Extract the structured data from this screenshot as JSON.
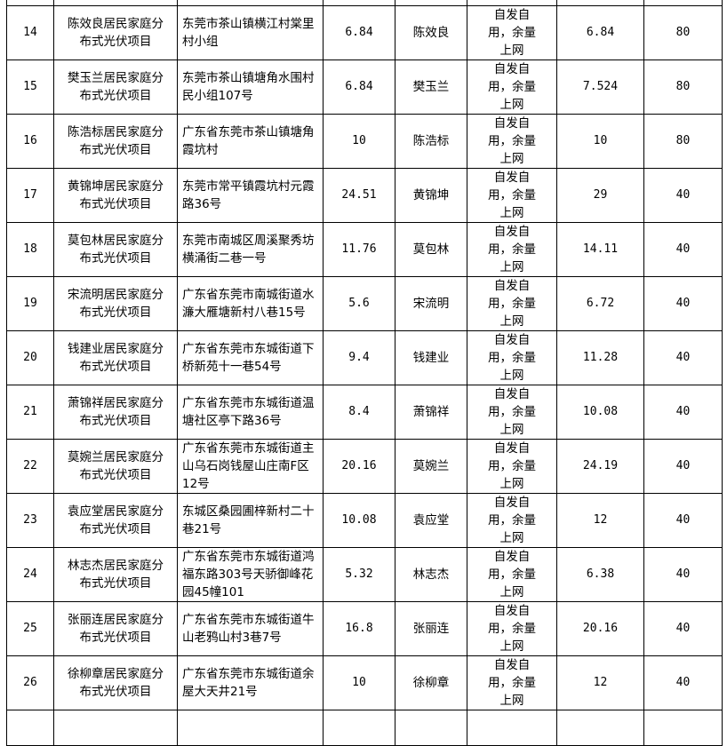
{
  "table": {
    "rows": [
      {
        "no": "14",
        "project": "陈效良居民家庭分布式光伏项目",
        "address": "东莞市茶山镇横江村棠里村小组",
        "capacity": "6.84",
        "owner": "陈效良",
        "mode": "自发自用，余量上网",
        "value2": "6.84",
        "value3": "80"
      },
      {
        "no": "15",
        "project": "樊玉兰居民家庭分布式光伏项目",
        "address": "东莞市茶山镇塘角水围村民小组107号",
        "capacity": "6.84",
        "owner": "樊玉兰",
        "mode": "自发自用，余量上网",
        "value2": "7.524",
        "value3": "80"
      },
      {
        "no": "16",
        "project": "陈浩标居民家庭分布式光伏项目",
        "address": "广东省东莞市茶山镇塘角霞坑村",
        "capacity": "10",
        "owner": "陈浩标",
        "mode": "自发自用，余量上网",
        "value2": "10",
        "value3": "80"
      },
      {
        "no": "17",
        "project": "黄锦坤居民家庭分布式光伏项目",
        "address": "东莞市常平镇霞坑村元霞路36号",
        "capacity": "24.51",
        "owner": "黄锦坤",
        "mode": "自发自用，余量上网",
        "value2": "29",
        "value3": "40"
      },
      {
        "no": "18",
        "project": "莫包林居民家庭分布式光伏项目",
        "address": "东莞市南城区周溪聚秀坊横涌街二巷一号",
        "capacity": "11.76",
        "owner": "莫包林",
        "mode": "自发自用，余量上网",
        "value2": "14.11",
        "value3": "40"
      },
      {
        "no": "19",
        "project": "宋流明居民家庭分布式光伏项目",
        "address": "广东省东莞市南城街道水濂大雁塘新村八巷15号",
        "capacity": "5.6",
        "owner": "宋流明",
        "mode": "自发自用，余量上网",
        "value2": "6.72",
        "value3": "40"
      },
      {
        "no": "20",
        "project": "钱建业居民家庭分布式光伏项目",
        "address": "广东省东莞市东城街道下桥新苑十一巷54号",
        "capacity": "9.4",
        "owner": "钱建业",
        "mode": "自发自用，余量上网",
        "value2": "11.28",
        "value3": "40"
      },
      {
        "no": "21",
        "project": "萧锦祥居民家庭分布式光伏项目",
        "address": "广东省东莞市东城街道温塘社区亭下路36号",
        "capacity": "8.4",
        "owner": "萧锦祥",
        "mode": "自发自用，余量上网",
        "value2": "10.08",
        "value3": "40"
      },
      {
        "no": "22",
        "project": "莫婉兰居民家庭分布式光伏项目",
        "address": "广东省东莞市东城街道主山乌石岗钱屋山庄南F区12号",
        "capacity": "20.16",
        "owner": "莫婉兰",
        "mode": "自发自用，余量上网",
        "value2": "24.19",
        "value3": "40"
      },
      {
        "no": "23",
        "project": "袁应堂居民家庭分布式光伏项目",
        "address": "东城区桑园圃梓新村二十巷21号",
        "capacity": "10.08",
        "owner": "袁应堂",
        "mode": "自发自用，余量上网",
        "value2": "12",
        "value3": "40"
      },
      {
        "no": "24",
        "project": "林志杰居民家庭分布式光伏项目",
        "address": "广东省东莞市东城街道鸿福东路303号天骄御峰花园45幢101",
        "capacity": "5.32",
        "owner": "林志杰",
        "mode": "自发自用，余量上网",
        "value2": "6.38",
        "value3": "40"
      },
      {
        "no": "25",
        "project": "张丽连居民家庭分布式光伏项目",
        "address": "广东省东莞市东城街道牛山老鸦山村3巷7号",
        "capacity": "16.8",
        "owner": "张丽连",
        "mode": "自发自用，余量上网",
        "value2": "20.16",
        "value3": "40"
      },
      {
        "no": "26",
        "project": "徐柳章居民家庭分布式光伏项目",
        "address": "广东省东莞市东城街道余屋大天井21号",
        "capacity": "10",
        "owner": "徐柳章",
        "mode": "自发自用，余量上网",
        "value2": "12",
        "value3": "40"
      }
    ]
  }
}
